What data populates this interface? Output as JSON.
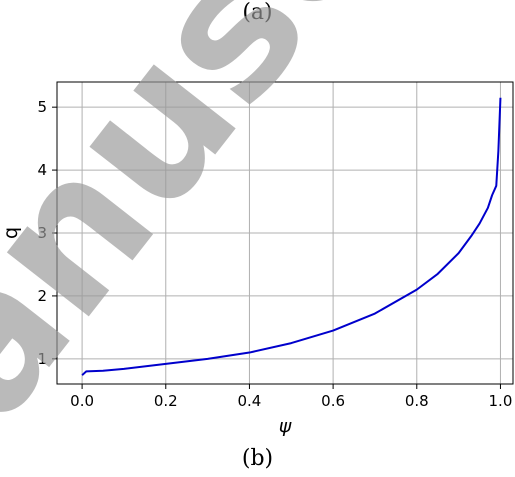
{
  "captions": {
    "top": "(a)",
    "bottom": "(b)"
  },
  "watermark": {
    "text": "anuscr",
    "color": "#9a9a9a"
  },
  "chart_data": {
    "type": "line",
    "title": "",
    "xlabel": "ψ",
    "ylabel": "q",
    "xlim": [
      -0.06,
      1.03
    ],
    "ylim": [
      0.6,
      5.4
    ],
    "x_ticks": [
      0.0,
      0.2,
      0.4,
      0.6,
      0.8,
      1.0
    ],
    "x_tick_labels": [
      "0.0",
      "0.2",
      "0.4",
      "0.6",
      "0.8",
      "1.0"
    ],
    "y_ticks": [
      1,
      2,
      3,
      4,
      5
    ],
    "y_tick_labels": [
      "1",
      "2",
      "3",
      "4",
      "5"
    ],
    "grid": true,
    "series": [
      {
        "color": "#0000cc",
        "x": [
          0.0,
          0.01,
          0.05,
          0.1,
          0.2,
          0.3,
          0.4,
          0.5,
          0.6,
          0.7,
          0.8,
          0.85,
          0.9,
          0.93,
          0.95,
          0.97,
          0.98,
          0.99,
          0.995,
          1.0
        ],
        "y": [
          0.74,
          0.8,
          0.81,
          0.84,
          0.92,
          1.0,
          1.1,
          1.25,
          1.45,
          1.72,
          2.1,
          2.35,
          2.68,
          2.95,
          3.15,
          3.4,
          3.6,
          3.75,
          4.3,
          5.15
        ]
      }
    ]
  }
}
